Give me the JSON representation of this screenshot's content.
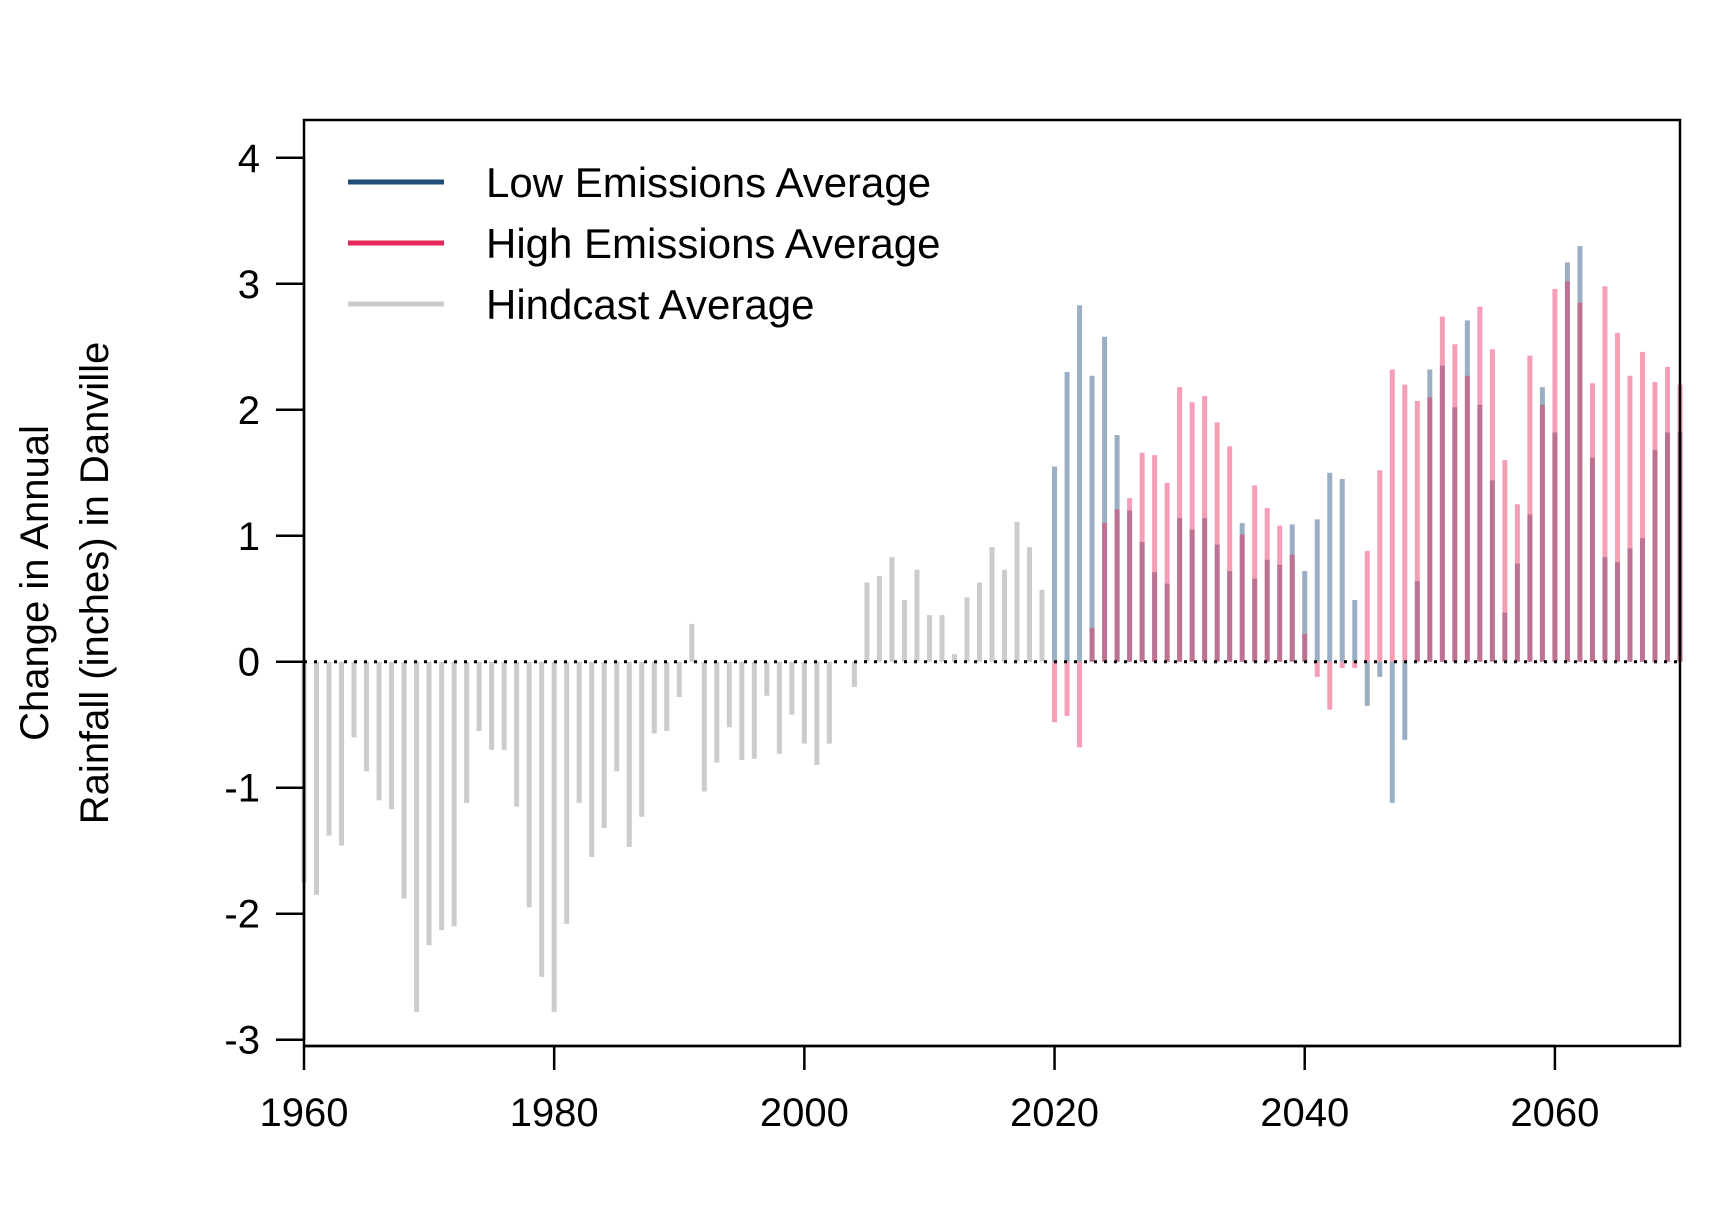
{
  "chart_data": {
    "type": "bar",
    "title": "",
    "xlabel": "",
    "ylabel_lines": [
      "Change in Annual",
      "Rainfall (inches) in Danville"
    ],
    "xlim": [
      1960,
      2070
    ],
    "ylim": [
      -3.05,
      4.3
    ],
    "x_ticks": [
      1960,
      1980,
      2000,
      2020,
      2040,
      2060
    ],
    "y_ticks": [
      4,
      3,
      2,
      1,
      0,
      -1,
      -2,
      -3
    ],
    "x_tick_labels": [
      "1960",
      "1980",
      "2000",
      "2020",
      "2040",
      "2060"
    ],
    "y_tick_labels": [
      "4",
      "3",
      "2",
      "1",
      "0",
      "-1",
      "-2",
      "-3"
    ],
    "reference_line": {
      "y": 0,
      "style": "dotted"
    },
    "legend": {
      "position": "top-left",
      "entries": [
        {
          "label": "Low Emissions Average",
          "color": "#1f4e79"
        },
        {
          "label": "High Emissions Average",
          "color": "#e8285c"
        },
        {
          "label": "Hindcast Average",
          "color": "#cccccc"
        }
      ]
    },
    "series": [
      {
        "name": "Hindcast Average",
        "color": "#cccccc",
        "x": [
          1960,
          1961,
          1962,
          1963,
          1964,
          1965,
          1966,
          1967,
          1968,
          1969,
          1970,
          1971,
          1972,
          1973,
          1974,
          1975,
          1976,
          1977,
          1978,
          1979,
          1980,
          1981,
          1982,
          1983,
          1984,
          1985,
          1986,
          1987,
          1988,
          1989,
          1990,
          1991,
          1992,
          1993,
          1994,
          1995,
          1996,
          1997,
          1998,
          1999,
          2000,
          2001,
          2002,
          2003,
          2004,
          2005,
          2006,
          2007,
          2008,
          2009,
          2010,
          2011,
          2012,
          2013,
          2014,
          2015,
          2016,
          2017,
          2018,
          2019
        ],
        "values": [
          -1.75,
          -1.85,
          -1.38,
          -1.46,
          -0.6,
          -0.87,
          -1.1,
          -1.17,
          -1.88,
          -2.78,
          -2.25,
          -2.13,
          -2.1,
          -1.12,
          -0.55,
          -0.7,
          -0.7,
          -1.15,
          -1.95,
          -2.5,
          -2.78,
          -2.08,
          -1.12,
          -1.55,
          -1.32,
          -0.87,
          -1.47,
          -1.23,
          -0.57,
          -0.55,
          -0.28,
          0.3,
          -1.03,
          -0.8,
          -0.52,
          -0.78,
          -0.77,
          -0.27,
          -0.73,
          -0.42,
          -0.65,
          -0.82,
          -0.65,
          0.0,
          -0.2,
          0.63,
          0.68,
          0.83,
          0.49,
          0.73,
          0.37,
          0.37,
          0.06,
          0.51,
          0.63,
          0.91,
          0.73,
          1.11,
          0.91,
          0.57
        ]
      },
      {
        "name": "Low Emissions Average",
        "color": "#1f4e79",
        "x": [
          2020,
          2021,
          2022,
          2023,
          2024,
          2025,
          2026,
          2027,
          2028,
          2029,
          2030,
          2031,
          2032,
          2033,
          2034,
          2035,
          2036,
          2037,
          2038,
          2039,
          2040,
          2041,
          2042,
          2043,
          2044,
          2045,
          2046,
          2047,
          2048,
          2049,
          2050,
          2051,
          2052,
          2053,
          2054,
          2055,
          2056,
          2057,
          2058,
          2059,
          2060,
          2061,
          2062,
          2063,
          2064,
          2065,
          2066,
          2067,
          2068,
          2069,
          2070
        ],
        "values": [
          1.55,
          2.3,
          2.83,
          2.27,
          2.58,
          1.8,
          1.2,
          0.95,
          0.71,
          0.62,
          1.14,
          1.05,
          1.14,
          0.93,
          0.72,
          1.1,
          0.66,
          0.81,
          0.77,
          1.09,
          0.72,
          1.13,
          1.5,
          1.45,
          0.49,
          -0.35,
          -0.12,
          -1.12,
          -0.62,
          0.64,
          2.32,
          2.35,
          2.02,
          2.71,
          2.04,
          1.44,
          0.39,
          0.78,
          1.17,
          2.18,
          1.82,
          3.17,
          3.3,
          1.62,
          0.83,
          0.79,
          0.9,
          0.98,
          1.68,
          1.82,
          1.82
        ]
      },
      {
        "name": "High Emissions Average",
        "color": "#e8285c",
        "x": [
          2020,
          2021,
          2022,
          2023,
          2024,
          2025,
          2026,
          2027,
          2028,
          2029,
          2030,
          2031,
          2032,
          2033,
          2034,
          2035,
          2036,
          2037,
          2038,
          2039,
          2040,
          2041,
          2042,
          2043,
          2044,
          2045,
          2046,
          2047,
          2048,
          2049,
          2050,
          2051,
          2052,
          2053,
          2054,
          2055,
          2056,
          2057,
          2058,
          2059,
          2060,
          2061,
          2062,
          2063,
          2064,
          2065,
          2066,
          2067,
          2068,
          2069,
          2070
        ],
        "values": [
          -0.48,
          -0.43,
          -0.68,
          0.27,
          1.1,
          1.21,
          1.3,
          1.66,
          1.64,
          1.42,
          2.18,
          2.06,
          2.11,
          1.9,
          1.71,
          1.01,
          1.4,
          1.22,
          1.08,
          0.85,
          0.22,
          -0.12,
          -0.38,
          -0.05,
          -0.05,
          0.88,
          1.52,
          2.32,
          2.2,
          2.07,
          2.1,
          2.74,
          2.52,
          2.27,
          2.82,
          2.48,
          1.6,
          1.25,
          2.43,
          2.04,
          2.96,
          3.02,
          2.85,
          2.21,
          2.98,
          2.61,
          2.27,
          2.46,
          2.22,
          2.34,
          2.2
        ]
      }
    ]
  }
}
